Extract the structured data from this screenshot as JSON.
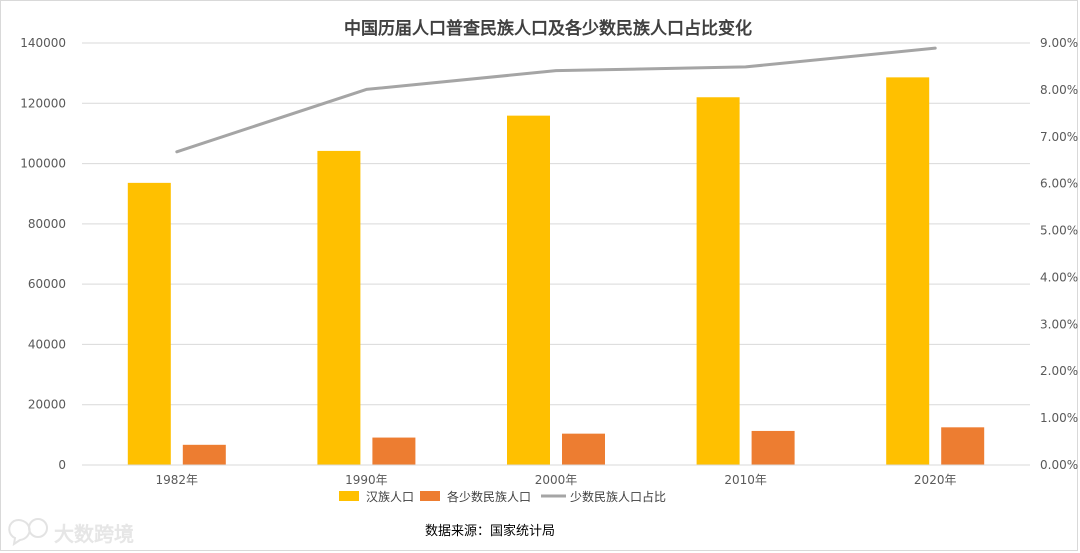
{
  "chart_data": {
    "type": "bar",
    "title": "中国历届人口普查民族人口及各少数民族人口占比变化",
    "categories": [
      "1982年",
      "1990年",
      "2000年",
      "2010年",
      "2020年"
    ],
    "series": [
      {
        "name": "汉族人口",
        "type": "bar",
        "axis": "left",
        "color": "#ffc000",
        "values": [
          93600,
          104200,
          115900,
          122000,
          128600
        ]
      },
      {
        "name": "各少数民族人口",
        "type": "bar",
        "axis": "left",
        "color": "#ed7d31",
        "values": [
          6700,
          9100,
          10400,
          11300,
          12500
        ]
      },
      {
        "name": "少数民族人口占比",
        "type": "line",
        "axis": "right",
        "color": "#a5a5a5",
        "values": [
          0.0668,
          0.0801,
          0.0841,
          0.0849,
          0.0889
        ]
      }
    ],
    "y_left": {
      "min": 0,
      "max": 140000,
      "ticks": [
        0,
        20000,
        40000,
        60000,
        80000,
        100000,
        120000,
        140000
      ]
    },
    "y_right": {
      "min": 0,
      "max": 0.09,
      "ticks": [
        0,
        0.01,
        0.02,
        0.03,
        0.04,
        0.05,
        0.06,
        0.07,
        0.08,
        0.09
      ],
      "tick_labels": [
        "0.00%",
        "1.00%",
        "2.00%",
        "3.00%",
        "4.00%",
        "5.00%",
        "6.00%",
        "7.00%",
        "8.00%",
        "9.00%"
      ]
    },
    "grid": true,
    "legend_position": "bottom",
    "gridline_color": "#d9d9d9"
  },
  "source_note": "数据来源：国家统计局",
  "watermark": {
    "text": "大数跨境",
    "icon": "chat-bubble-logo-icon"
  }
}
